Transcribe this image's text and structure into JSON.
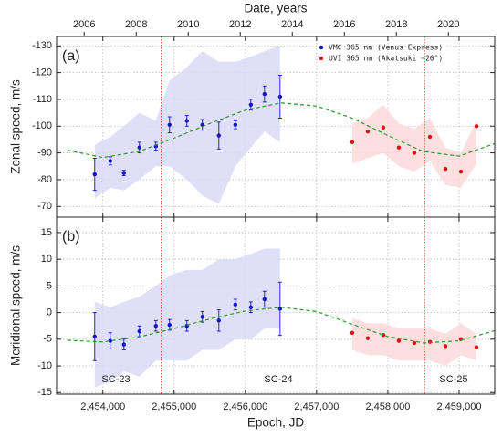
{
  "chart_data": [
    {
      "type": "scatter",
      "label": "(a)",
      "ylabel": "Zonal speed, m/s",
      "x2label": "Date, years",
      "xlim": [
        2453350,
        2459500
      ],
      "xticks": [
        2454000,
        2455000,
        2456000,
        2457000,
        2458000,
        2459000
      ],
      "x2lim": [
        2004.94,
        2021.78
      ],
      "x2ticks": [
        2006,
        2008,
        2010,
        2012,
        2014,
        2016,
        2018,
        2020
      ],
      "ylim": [
        -66,
        -133.5
      ],
      "yticks": [
        -130,
        -120,
        -110,
        -100,
        -90,
        -80,
        -70
      ],
      "grid": true,
      "legend": "upper right",
      "vlines": [
        2454820,
        2458515
      ],
      "vline_color": "#e02020",
      "series": [
        {
          "name": "VMC 365 nm (Venus Express)",
          "color": "#1515c8",
          "band_color": "#d9d9f7",
          "x": [
            2453885,
            2454103,
            2454295,
            2454513,
            2454744,
            2454936,
            2455179,
            2455397,
            2455628,
            2455859,
            2456077,
            2456269,
            2456487
          ],
          "values": [
            -82,
            -87,
            -82.5,
            -92,
            -92.5,
            -100.5,
            -102,
            -100.5,
            -96.5,
            -100.5,
            -108,
            -112,
            -111
          ],
          "errors": [
            6,
            1.5,
            1,
            2,
            1.5,
            3,
            2,
            2,
            5,
            1.5,
            2,
            3,
            8
          ],
          "band_low": [
            -73,
            -77,
            -76,
            -80,
            -85,
            -85,
            -80,
            -74,
            -71,
            -85,
            -92,
            -98,
            -94
          ],
          "band_high": [
            -93,
            -96,
            -100,
            -105,
            -102,
            -117,
            -122,
            -128,
            -124,
            -124,
            -126,
            -128,
            -130
          ]
        },
        {
          "name": "UVI 365 nm (Akatsuki ~20°)",
          "color": "#e01010",
          "band_color": "#fbdada",
          "x": [
            2457500,
            2457718,
            2457936,
            2458154,
            2458372,
            2458590,
            2458808,
            2459026,
            2459244
          ],
          "values": [
            -94,
            -98,
            -99.5,
            -92,
            -90,
            -96,
            -84,
            -83,
            -100
          ],
          "band_low": [
            -86,
            -88,
            -90,
            -85,
            -83,
            -87,
            -78,
            -77,
            -86
          ],
          "band_high": [
            -101,
            -103,
            -108,
            -101,
            -99,
            -103,
            -92,
            -90,
            -102
          ]
        },
        {
          "style": "dashed",
          "color": "#2a9a2a",
          "x": [
            2453500,
            2454000,
            2454500,
            2455000,
            2455500,
            2456000,
            2456500,
            2457000,
            2457500,
            2458000,
            2458500,
            2459000,
            2459500
          ],
          "values": [
            -91,
            -88.3,
            -90.5,
            -95.5,
            -101,
            -106,
            -108.7,
            -107.5,
            -103,
            -96.5,
            -90.5,
            -88.8,
            -93.5
          ]
        }
      ]
    },
    {
      "type": "scatter",
      "label": "(b)",
      "ylabel": "Meridional speed, m/s",
      "xlabel": "Epoch, JD",
      "xlim": [
        2453350,
        2459500
      ],
      "xticks": [
        {
          "value": 2454000,
          "label": "2,454,000"
        },
        {
          "value": 2455000,
          "label": "2,455,000"
        },
        {
          "value": 2456000,
          "label": "2,456,000"
        },
        {
          "value": 2457000,
          "label": "2,457,000"
        },
        {
          "value": 2458000,
          "label": "2,458,000"
        },
        {
          "value": 2459000,
          "label": "2,459,000"
        }
      ],
      "ylim": [
        -15.3,
        17.9
      ],
      "yticks": [
        15,
        10,
        5,
        0,
        -5,
        -10,
        -15
      ],
      "grid": true,
      "vlines": [
        2454820,
        2458515
      ],
      "vline_color": "#e02020",
      "annotations": [
        "SC-23",
        "SC-24",
        "SC-25"
      ],
      "series": [
        {
          "color": "#1515c8",
          "band_color": "#d9d9f7",
          "x": [
            2453885,
            2454103,
            2454295,
            2454513,
            2454744,
            2454936,
            2455179,
            2455397,
            2455628,
            2455859,
            2456077,
            2456269,
            2456487
          ],
          "values": [
            -4.5,
            -5.3,
            -6,
            -3.5,
            -2.5,
            -2.3,
            -2.5,
            -0.8,
            -1.5,
            1.5,
            1,
            2.5,
            0.7
          ],
          "errors": [
            4.5,
            1.5,
            1,
            1,
            1,
            1,
            1,
            1,
            2,
            1,
            1,
            1.5,
            5
          ],
          "band_low": [
            -14,
            -13,
            -11,
            -12,
            -9,
            -9,
            -9,
            -7,
            -7,
            -5,
            -5,
            -3,
            -3
          ],
          "band_high": [
            2,
            1,
            2,
            3,
            5,
            7,
            8,
            8,
            10,
            10,
            11,
            12,
            12
          ]
        },
        {
          "color": "#e01010",
          "band_color": "#fbdada",
          "x": [
            2457500,
            2457718,
            2457936,
            2458154,
            2458372,
            2458590,
            2458808,
            2459026,
            2459244
          ],
          "values": [
            -3.8,
            -4.8,
            -4.2,
            -5.3,
            -5.7,
            -5.5,
            -6.3,
            -5,
            -6.5
          ],
          "band_low": [
            -7,
            -8,
            -8,
            -9,
            -9,
            -9,
            -10,
            -8,
            -9
          ],
          "band_high": [
            -1,
            -2,
            -2,
            -3,
            -3,
            -3,
            -4,
            -2,
            -4
          ]
        },
        {
          "style": "dashed",
          "color": "#2a9a2a",
          "x": [
            2453500,
            2454000,
            2454500,
            2455000,
            2455500,
            2456000,
            2456500,
            2457000,
            2457500,
            2458000,
            2458500,
            2459000,
            2459500
          ],
          "values": [
            -5.2,
            -5.5,
            -4.6,
            -3,
            -1.2,
            0.3,
            1,
            0.2,
            -2.2,
            -4.5,
            -5.7,
            -5.3,
            -3.4
          ]
        }
      ]
    }
  ]
}
